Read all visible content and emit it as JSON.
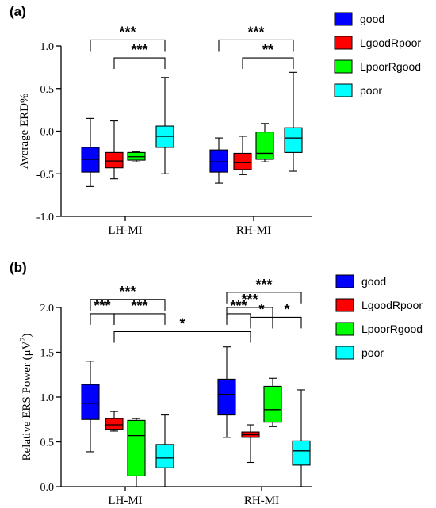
{
  "chart_data": [
    {
      "type": "boxplot",
      "panel_label": "(a)",
      "ylabel": "Average ERD%",
      "ylim": [
        -1.0,
        1.0
      ],
      "yticks": [
        -1.0,
        -0.5,
        0.0,
        0.5,
        1.0
      ],
      "ytick_labels": [
        "-1.0",
        "-0.5",
        "0.0",
        "0.5",
        "1.0"
      ],
      "categories": [
        "LH-MI",
        "RH-MI"
      ],
      "series": [
        {
          "name": "good",
          "color": "#0000ff",
          "boxes": [
            {
              "min": -0.65,
              "q1": -0.48,
              "median": -0.33,
              "q3": -0.19,
              "max": 0.15
            },
            {
              "min": -0.61,
              "q1": -0.48,
              "median": -0.36,
              "q3": -0.22,
              "max": -0.08
            }
          ]
        },
        {
          "name": "LgoodRpoor",
          "color": "#ff0000",
          "boxes": [
            {
              "min": -0.56,
              "q1": -0.43,
              "median": -0.35,
              "q3": -0.25,
              "max": 0.12
            },
            {
              "min": -0.51,
              "q1": -0.45,
              "median": -0.37,
              "q3": -0.26,
              "max": -0.06
            }
          ]
        },
        {
          "name": "LpoorRgood",
          "color": "#00ff00",
          "boxes": [
            {
              "min": -0.36,
              "q1": -0.34,
              "median": -0.3,
              "q3": -0.25,
              "max": -0.24
            },
            {
              "min": -0.36,
              "q1": -0.33,
              "median": -0.26,
              "q3": -0.01,
              "max": 0.09
            }
          ]
        },
        {
          "name": "poor",
          "color": "#00ffff",
          "boxes": [
            {
              "min": -0.5,
              "q1": -0.19,
              "median": -0.06,
              "q3": 0.06,
              "max": 0.63
            },
            {
              "min": -0.47,
              "q1": -0.25,
              "median": -0.08,
              "q3": 0.04,
              "max": 0.69
            }
          ]
        }
      ],
      "annotations": [
        {
          "text": "***",
          "cat": 0,
          "from": 0,
          "to": 3,
          "y": 1.07
        },
        {
          "text": "***",
          "cat": 0,
          "from": 1,
          "to": 3,
          "y": 0.86
        },
        {
          "text": "***",
          "cat": 1,
          "from": 0,
          "to": 3,
          "y": 1.07
        },
        {
          "text": "**",
          "cat": 1,
          "from": 1,
          "to": 3,
          "y": 0.86
        }
      ],
      "legend": {
        "entries": [
          "good",
          "LgoodRpoor",
          "LpoorRgood",
          "poor"
        ],
        "placement": "right"
      }
    },
    {
      "type": "boxplot",
      "panel_label": "(b)",
      "ylabel": "Relative ERS Power (μV²)",
      "ylabel_main": "Relative ERS Power (μV",
      "ylabel_sup": "2",
      "ylabel_end": ")",
      "ylim": [
        0.0,
        2.0
      ],
      "yticks": [
        0.0,
        0.5,
        1.0,
        1.5,
        2.0
      ],
      "ytick_labels": [
        "0.0",
        "0.5",
        "1.0",
        "1.5",
        "2.0"
      ],
      "categories": [
        "LH-MI",
        "RH-MI"
      ],
      "series": [
        {
          "name": "good",
          "color": "#0000ff",
          "boxes": [
            {
              "min": 0.39,
              "q1": 0.75,
              "median": 0.93,
              "q3": 1.14,
              "max": 1.4
            },
            {
              "min": 0.55,
              "q1": 0.8,
              "median": 1.03,
              "q3": 1.2,
              "max": 1.56
            }
          ]
        },
        {
          "name": "LgoodRpoor",
          "color": "#ff0000",
          "boxes": [
            {
              "min": 0.62,
              "q1": 0.64,
              "median": 0.69,
              "q3": 0.76,
              "max": 0.84
            },
            {
              "min": 0.27,
              "q1": 0.55,
              "median": 0.58,
              "q3": 0.61,
              "max": 0.69
            }
          ]
        },
        {
          "name": "LpoorRgood",
          "color": "#00ff00",
          "boxes": [
            {
              "min": 0.0,
              "q1": 0.12,
              "median": 0.57,
              "q3": 0.74,
              "max": 0.76
            },
            {
              "min": 0.67,
              "q1": 0.72,
              "median": 0.86,
              "q3": 1.12,
              "max": 1.21
            }
          ]
        },
        {
          "name": "poor",
          "color": "#00ffff",
          "boxes": [
            {
              "min": 0.0,
              "q1": 0.21,
              "median": 0.32,
              "q3": 0.47,
              "max": 0.8
            },
            {
              "min": 0.0,
              "q1": 0.24,
              "median": 0.4,
              "q3": 0.51,
              "max": 1.08
            }
          ]
        }
      ],
      "annotations": [
        {
          "text": "***",
          "x1": [
            0,
            0
          ],
          "x2": [
            0,
            3
          ],
          "y": 2.09
        },
        {
          "text": "***",
          "x1": [
            0,
            0
          ],
          "x2": [
            0,
            1
          ],
          "y": 1.93
        },
        {
          "text": "***",
          "x1": [
            0,
            1
          ],
          "x2": [
            0,
            3
          ],
          "y": 1.93
        },
        {
          "text": "*",
          "x1": [
            0,
            1
          ],
          "x2": [
            1,
            1
          ],
          "y": 1.73
        },
        {
          "text": "***",
          "x1": [
            1,
            0
          ],
          "x2": [
            1,
            3
          ],
          "y": 2.17
        },
        {
          "text": "***",
          "x1": [
            1,
            0
          ],
          "x2": [
            1,
            2
          ],
          "y": 2.0
        },
        {
          "text": "***",
          "x1": [
            1,
            0
          ],
          "x2": [
            1,
            1
          ],
          "y": 1.93
        },
        {
          "text": "*",
          "x1": [
            1,
            1
          ],
          "x2": [
            1,
            2
          ],
          "y": 1.89
        },
        {
          "text": "*",
          "x1": [
            1,
            2
          ],
          "x2": [
            1,
            3
          ],
          "y": 1.89
        }
      ],
      "legend": {
        "entries": [
          "good",
          "LgoodRpoor",
          "LpoorRgood",
          "poor"
        ],
        "placement": "right"
      }
    }
  ]
}
